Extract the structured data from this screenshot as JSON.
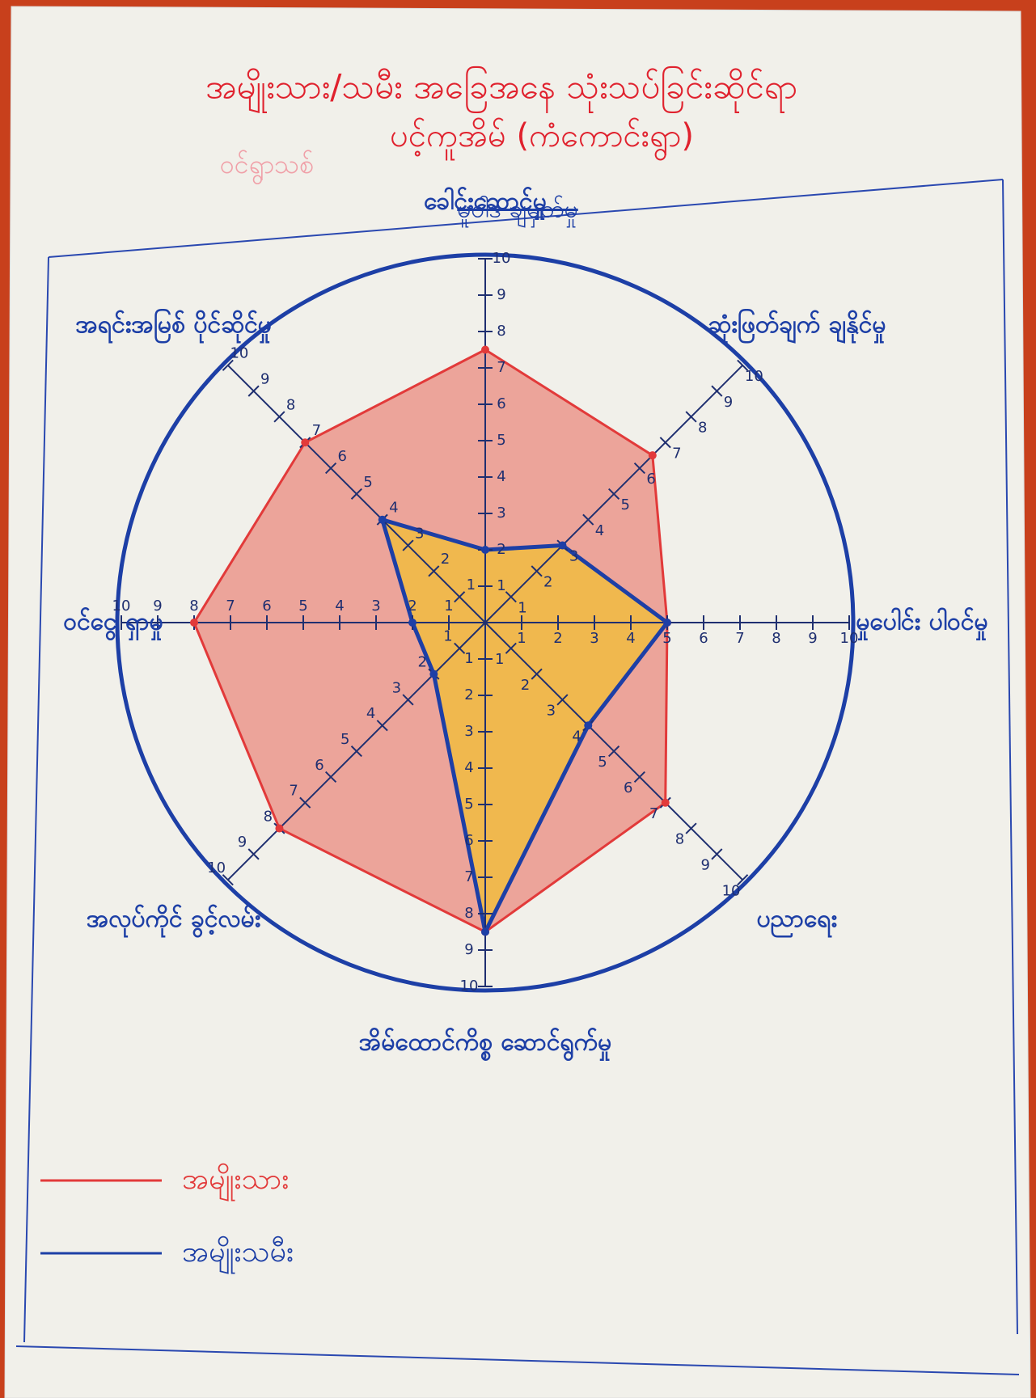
{
  "chart_data": {
    "type": "radar",
    "title": "အမျိုးသား/သမီး အခြေအနေ သုံးသပ်ခြင်းဆိုင်ရာ",
    "subtitle": "ပင့်ကူအိမ် (ကံကောင်းရွာ)",
    "annotations": [
      "ဝင်ရွာသစ်",
      "မူဝါဒ ချမှတ်မှု"
    ],
    "categories": [
      "ခေါင်းဆောင်မှု",
      "ဆုံးဖြတ်ချက် ချနိုင်မှု",
      "မှုပေါင်း ပါဝင်မှု",
      "ပညာရေး",
      "အိမ်ထောင်ကိစ္စ ဆောင်ရွက်မှု",
      "အလုပ်ကိုင် ခွင့်လမ်း",
      "ဝင်ငွေ ရှာမှု",
      "အရင်းအမြစ် ပိုင်ဆိုင်မှု"
    ],
    "series": [
      {
        "name": "အမျိုးသား",
        "color": "#e23a3a",
        "fill": "#e8584a",
        "values": [
          7.5,
          6.5,
          5,
          7,
          8.5,
          8,
          8,
          7
        ]
      },
      {
        "name": "အမျိုးသမီး",
        "color": "#1d3fa6",
        "fill": "#f2c12e",
        "values": [
          2,
          3,
          5,
          4,
          8.5,
          2,
          2,
          4
        ]
      }
    ],
    "rlim": [
      0,
      10
    ],
    "rticks": [
      1,
      2,
      3,
      4,
      5,
      6,
      7,
      8,
      9,
      10
    ],
    "legend": "bottom-left"
  }
}
